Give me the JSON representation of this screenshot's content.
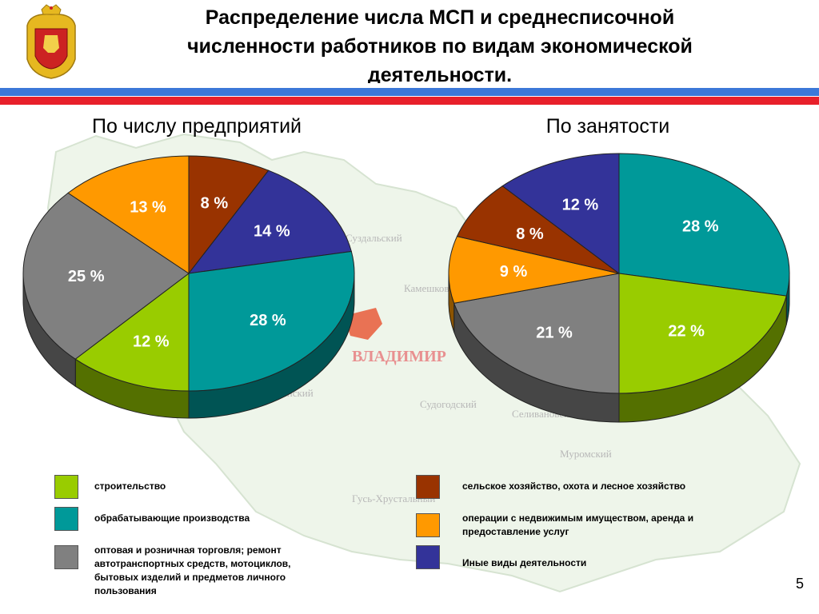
{
  "page": {
    "title": "Распределение числа МСП и среднесписочной численности работников по видам экономической деятельности.",
    "page_number": "5"
  },
  "colors": {
    "blue_stripe": "#3c78d8",
    "red_stripe": "#e8202a"
  },
  "chart_data": [
    {
      "type": "pie",
      "title": "По числу предприятий",
      "slices": [
        {
          "category": "сельское хозяйство, охота и лесное хозяйство",
          "value": 8,
          "label": "8 %",
          "color": "#993300"
        },
        {
          "category": "Иные виды деятельности",
          "value": 14,
          "label": "14 %",
          "color": "#333399"
        },
        {
          "category": "обрабатывающие производства",
          "value": 28,
          "label": "28 %",
          "color": "#009999"
        },
        {
          "category": "строительство",
          "value": 12,
          "label": "12 %",
          "color": "#99cc00"
        },
        {
          "category": "оптовая и розничная торговля; ремонт автотранспортных средств, мотоциклов, бытовых изделий и предметов личного пользования",
          "value": 25,
          "label": "25 %",
          "color": "#808080"
        },
        {
          "category": "операции с недвижимым имуществом, аренда и предоставление услуг",
          "value": 13,
          "label": "13 %",
          "color": "#ff9900"
        }
      ]
    },
    {
      "type": "pie",
      "title": "По занятости",
      "slices": [
        {
          "category": "обрабатывающие производства",
          "value": 28,
          "label": "28 %",
          "color": "#009999"
        },
        {
          "category": "строительство",
          "value": 22,
          "label": "22 %",
          "color": "#99cc00"
        },
        {
          "category": "оптовая и розничная торговля; ремонт автотранспортных средств, мотоциклов, бытовых изделий и предметов личного пользования",
          "value": 21,
          "label": "21 %",
          "color": "#808080"
        },
        {
          "category": "операции с недвижимым имуществом, аренда и предоставление услуг",
          "value": 9,
          "label": "9 %",
          "color": "#ff9900"
        },
        {
          "category": "сельское хозяйство, охота и лесное хозяйство",
          "value": 8,
          "label": "8 %",
          "color": "#993300"
        },
        {
          "category": "Иные виды деятельности",
          "value": 12,
          "label": "12 %",
          "color": "#333399"
        }
      ]
    }
  ],
  "legend": [
    {
      "name": "строительство",
      "color": "#99cc00"
    },
    {
      "name": "обрабатывающие производства",
      "color": "#009999"
    },
    {
      "name": "оптовая и розничная торговля; ремонт автотранспортных средств, мотоциклов, бытовых изделий и предметов личного пользования",
      "color": "#808080"
    },
    {
      "name": "сельское хозяйство, охота и лесное хозяйство",
      "color": "#993300"
    },
    {
      "name": "операции с недвижимым имуществом, аренда и предоставление услуг",
      "color": "#ff9900"
    },
    {
      "name": "Иные виды деятельности",
      "color": "#333399"
    }
  ],
  "background_map": {
    "city_label": "ВЛАДИМИР",
    "district_labels": [
      "Суздальский",
      "Камешковский",
      "Собинский",
      "Судогодский",
      "Селивановский",
      "Муромский",
      "Гусь-Хрустальный"
    ]
  }
}
